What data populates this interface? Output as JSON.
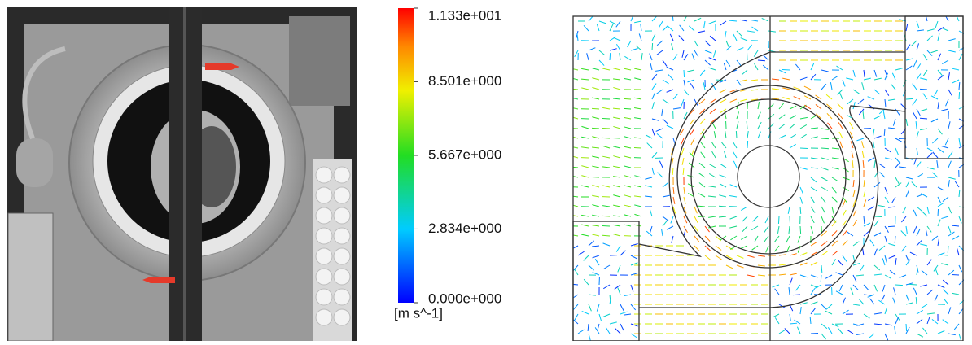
{
  "colorbar": {
    "unit": "[m s^-1]",
    "lim": [
      0,
      11.33
    ],
    "ticks": [
      {
        "value": 11.33,
        "label": "1.133e+001"
      },
      {
        "value": 8.501,
        "label": "8.501e+000"
      },
      {
        "value": 5.667,
        "label": "5.667e+000"
      },
      {
        "value": 2.834,
        "label": "2.834e+000"
      },
      {
        "value": 0,
        "label": "0.000e+000"
      }
    ]
  }
}
